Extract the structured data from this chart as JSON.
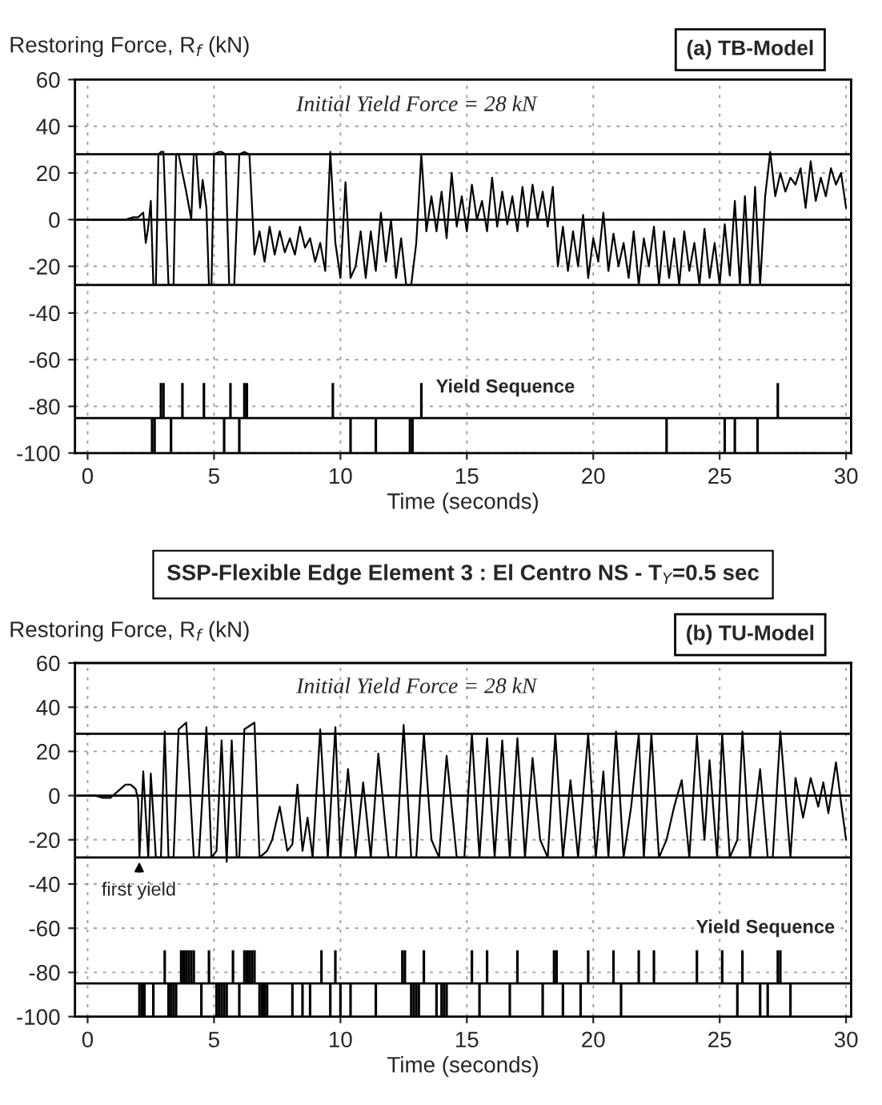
{
  "chart_data": [
    {
      "type": "line",
      "subtitle": "(a) TB-Model",
      "ylabel": "Restoring Force, R$_{f}$ (kN)",
      "xlabel": "Time (seconds)",
      "xlim": [
        -0.5,
        30.2
      ],
      "xticks": [
        0,
        5,
        10,
        15,
        20,
        25,
        30
      ],
      "ylim": [
        -100,
        60
      ],
      "yticks": [
        -100,
        -80,
        -60,
        -40,
        -20,
        0,
        20,
        40,
        60
      ],
      "grid": true,
      "annotations": [
        "Initial Yield Force = 28 kN",
        "Yield Sequence"
      ],
      "ref_lines": [
        {
          "axis": "y",
          "value": 28,
          "color": "#000000"
        },
        {
          "axis": "y",
          "value": -28,
          "color": "#000000"
        },
        {
          "axis": "y",
          "value": 0,
          "color": "#000000"
        },
        {
          "axis": "y",
          "value": -85,
          "color": "#000000"
        }
      ],
      "series": [
        {
          "type": "line",
          "color": "#000000",
          "x": [
            0,
            0.5,
            1.0,
            1.5,
            1.8,
            2.0,
            2.2,
            2.3,
            2.4,
            2.5,
            2.6,
            2.7,
            2.8,
            2.9,
            3.0,
            3.2,
            3.3,
            3.4,
            3.5,
            3.6,
            3.75,
            3.9,
            4.1,
            4.2,
            4.3,
            4.45,
            4.55,
            4.7,
            4.8,
            4.9,
            5.0,
            5.2,
            5.3,
            5.45,
            5.6,
            5.8,
            6.0,
            6.2,
            6.4,
            6.6,
            6.8,
            7.0,
            7.2,
            7.4,
            7.6,
            7.8,
            8.0,
            8.2,
            8.4,
            8.6,
            8.8,
            9.0,
            9.2,
            9.4,
            9.6,
            9.8,
            10.0,
            10.2,
            10.4,
            10.6,
            10.8,
            11.0,
            11.2,
            11.4,
            11.6,
            11.8,
            12.0,
            12.2,
            12.4,
            12.6,
            12.8,
            13.0,
            13.2,
            13.4,
            13.6,
            13.8,
            14.0,
            14.2,
            14.4,
            14.6,
            14.8,
            15.0,
            15.2,
            15.4,
            15.6,
            15.8,
            16.0,
            16.2,
            16.4,
            16.6,
            16.8,
            17.0,
            17.2,
            17.4,
            17.6,
            17.8,
            18.0,
            18.2,
            18.4,
            18.6,
            18.8,
            19.0,
            19.2,
            19.4,
            19.6,
            19.8,
            20.0,
            20.2,
            20.4,
            20.6,
            20.8,
            21.0,
            21.2,
            21.4,
            21.6,
            21.8,
            22.0,
            22.2,
            22.4,
            22.6,
            22.8,
            23.0,
            23.2,
            23.4,
            23.6,
            23.8,
            24.0,
            24.2,
            24.4,
            24.6,
            24.8,
            25.0,
            25.2,
            25.4,
            25.6,
            25.8,
            26.0,
            26.2,
            26.4,
            26.6,
            26.8,
            27.0,
            27.2,
            27.4,
            27.6,
            27.8,
            28.0,
            28.2,
            28.4,
            28.6,
            28.8,
            29.0,
            29.2,
            29.4,
            29.6,
            29.8,
            30.0
          ],
          "values": [
            0,
            0,
            0,
            0,
            1,
            1,
            3,
            -10,
            -3,
            8,
            -28,
            -28,
            28,
            29,
            29,
            -28,
            -28,
            -28,
            28,
            28,
            20,
            12,
            0,
            28,
            28,
            5,
            17,
            5,
            -28,
            -28,
            28,
            29,
            29,
            28,
            -28,
            -28,
            28,
            29,
            28,
            -15,
            -5,
            -18,
            -3,
            -15,
            -5,
            -14,
            -8,
            -15,
            -3,
            -12,
            -8,
            -18,
            -10,
            -22,
            29,
            -10,
            -25,
            16,
            -25,
            -20,
            -5,
            -25,
            -5,
            -22,
            3,
            -18,
            0,
            -25,
            -8,
            -28,
            -28,
            -10,
            28,
            -5,
            10,
            -5,
            12,
            -8,
            20,
            -3,
            10,
            -5,
            15,
            0,
            8,
            -5,
            18,
            -3,
            12,
            -2,
            10,
            -5,
            14,
            -3,
            15,
            0,
            12,
            -3,
            14,
            -20,
            -3,
            -22,
            -5,
            -20,
            2,
            -25,
            -8,
            -18,
            3,
            -22,
            -6,
            -20,
            -10,
            -25,
            -5,
            -28,
            -8,
            -20,
            -3,
            -28,
            -5,
            -25,
            -8,
            -28,
            -5,
            -22,
            -10,
            -28,
            -4,
            -25,
            -10,
            -28,
            -2,
            -24,
            8,
            -28,
            10,
            -28,
            14,
            -28,
            10,
            29,
            10,
            20,
            12,
            18,
            15,
            22,
            5,
            25,
            8,
            18,
            10,
            22,
            15,
            20,
            5
          ]
        },
        {
          "type": "bar",
          "color": "#000000",
          "x": [
            2.55,
            2.65,
            2.9,
            3.0,
            3.3,
            3.75,
            4.6,
            5.4,
            5.65,
            6.0,
            6.2,
            6.3,
            9.7,
            10.4,
            11.4,
            12.75,
            12.85,
            13.2,
            22.9,
            25.2,
            25.6,
            26.5,
            27.3
          ],
          "base": [
            -85,
            -85,
            -85,
            -85,
            -85,
            -85,
            -85,
            -85,
            -85,
            -85,
            -85,
            -85,
            -85,
            -85,
            -85,
            -85,
            -85,
            -85,
            -85,
            -85,
            -85,
            -85,
            -85
          ],
          "values": [
            -15,
            -15,
            15,
            15,
            -15,
            15,
            15,
            -15,
            15,
            -15,
            15,
            15,
            15,
            -15,
            -15,
            -15,
            -15,
            15,
            -15,
            -15,
            -15,
            -15,
            15
          ]
        }
      ]
    },
    {
      "type": "line",
      "title": "SSP-Flexible Edge Element 3 : El Centro NS - T$_{Y}$=0.5 sec",
      "subtitle": "(b) TU-Model",
      "ylabel": "Restoring Force, R$_{f}$ (kN)",
      "xlabel": "Time (seconds)",
      "xlim": [
        -0.5,
        30.2
      ],
      "xticks": [
        0,
        5,
        10,
        15,
        20,
        25,
        30
      ],
      "ylim": [
        -100,
        60
      ],
      "yticks": [
        -100,
        -80,
        -60,
        -40,
        -20,
        0,
        20,
        40,
        60
      ],
      "grid": true,
      "annotations": [
        "Initial Yield Force = 28 kN",
        "Yield Sequence",
        {
          "text": "first yield",
          "x": 2.05,
          "y": -28
        }
      ],
      "ref_lines": [
        {
          "axis": "y",
          "value": 28,
          "color": "#000000"
        },
        {
          "axis": "y",
          "value": -28,
          "color": "#000000"
        },
        {
          "axis": "y",
          "value": 0,
          "color": "#000000"
        },
        {
          "axis": "y",
          "value": -85,
          "color": "#000000"
        }
      ],
      "series": [
        {
          "type": "line",
          "color": "#000000",
          "x": [
            0,
            0.3,
            0.6,
            0.9,
            1.2,
            1.5,
            1.7,
            1.9,
            2.0,
            2.05,
            2.2,
            2.4,
            2.5,
            2.7,
            2.9,
            3.05,
            3.2,
            3.4,
            3.6,
            3.9,
            4.2,
            4.4,
            4.7,
            4.9,
            5.1,
            5.3,
            5.5,
            5.7,
            5.9,
            6.0,
            6.2,
            6.6,
            6.8,
            7.1,
            7.3,
            7.6,
            7.9,
            8.1,
            8.3,
            8.5,
            8.7,
            8.9,
            9.2,
            9.5,
            9.8,
            10.0,
            10.3,
            10.6,
            10.9,
            11.2,
            11.5,
            11.9,
            12.2,
            12.5,
            12.8,
            13.0,
            13.3,
            13.6,
            13.9,
            14.2,
            14.6,
            14.9,
            15.2,
            15.5,
            15.8,
            16.1,
            16.4,
            16.7,
            17.0,
            17.3,
            17.6,
            17.9,
            18.2,
            18.5,
            18.8,
            19.1,
            19.4,
            19.8,
            20.1,
            20.4,
            20.6,
            20.9,
            21.2,
            21.5,
            21.8,
            22.0,
            22.3,
            22.6,
            22.9,
            23.2,
            23.5,
            23.8,
            24.1,
            24.4,
            24.6,
            24.9,
            25.1,
            25.4,
            25.7,
            25.9,
            26.2,
            26.6,
            26.9,
            27.1,
            27.4,
            27.8,
            28.0,
            28.3,
            28.6,
            28.9,
            29.1,
            29.3,
            29.6,
            29.8,
            30.0
          ],
          "values": [
            0,
            0,
            -1,
            -1,
            2,
            5,
            5,
            3,
            -2,
            -28,
            11,
            -28,
            10,
            -28,
            -28,
            29,
            -28,
            -28,
            30,
            33,
            -28,
            -28,
            31,
            -28,
            -25,
            25,
            -30,
            25,
            -28,
            -28,
            30,
            33,
            -28,
            -25,
            -20,
            -5,
            -25,
            -22,
            5,
            -25,
            -10,
            -28,
            30,
            -28,
            31,
            -28,
            12,
            -28,
            6,
            -28,
            19,
            -28,
            -28,
            32,
            -28,
            -28,
            28,
            -20,
            -28,
            18,
            -28,
            -28,
            28,
            -28,
            26,
            -28,
            25,
            -28,
            26,
            -28,
            17,
            -20,
            -28,
            28,
            -28,
            7,
            -28,
            28,
            -28,
            11,
            -28,
            29,
            -28,
            -5,
            28,
            -28,
            28,
            -28,
            -20,
            -5,
            7,
            -28,
            27,
            -20,
            16,
            -28,
            28,
            -28,
            -20,
            29,
            -28,
            12,
            -28,
            -28,
            29,
            -28,
            8,
            -10,
            8,
            -5,
            6,
            -8,
            15,
            -3,
            -20
          ]
        },
        {
          "type": "bar",
          "color": "#000000",
          "x": [
            2.05,
            2.15,
            2.25,
            2.6,
            3.05,
            3.2,
            3.3,
            3.4,
            3.5,
            3.7,
            3.8,
            3.9,
            4.0,
            4.1,
            4.2,
            4.5,
            4.8,
            5.1,
            5.2,
            5.3,
            5.4,
            5.5,
            5.75,
            6.0,
            6.2,
            6.3,
            6.4,
            6.5,
            6.6,
            6.8,
            6.9,
            7.0,
            7.1,
            8.1,
            8.5,
            8.8,
            9.25,
            9.6,
            9.8,
            10.0,
            10.4,
            11.4,
            12.45,
            12.55,
            12.8,
            12.9,
            13.0,
            13.1,
            13.3,
            13.8,
            14.0,
            14.1,
            14.2,
            15.2,
            15.5,
            15.8,
            16.7,
            17.0,
            18.0,
            18.45,
            18.55,
            18.8,
            19.5,
            19.8,
            20.8,
            21.1,
            21.8,
            22.4,
            24.1,
            25.1,
            25.7,
            25.9,
            26.6,
            26.9,
            27.3,
            27.4,
            27.8
          ],
          "base": [
            -85,
            -85,
            -85,
            -85,
            -85,
            -85,
            -85,
            -85,
            -85,
            -85,
            -85,
            -85,
            -85,
            -85,
            -85,
            -85,
            -85,
            -85,
            -85,
            -85,
            -85,
            -85,
            -85,
            -85,
            -85,
            -85,
            -85,
            -85,
            -85,
            -85,
            -85,
            -85,
            -85,
            -85,
            -85,
            -85,
            -85,
            -85,
            -85,
            -85,
            -85,
            -85,
            -85,
            -85,
            -85,
            -85,
            -85,
            -85,
            -85,
            -85,
            -85,
            -85,
            -85,
            -85,
            -85,
            -85,
            -85,
            -85,
            -85,
            -85,
            -85,
            -85,
            -85,
            -85,
            -85,
            -85,
            -85,
            -85,
            -85,
            -85,
            -85,
            -85,
            -85,
            -85,
            -85,
            -85,
            -85
          ],
          "values": [
            -15,
            -15,
            -15,
            -15,
            15,
            -15,
            -15,
            -15,
            -15,
            15,
            15,
            15,
            15,
            15,
            15,
            -15,
            15,
            -15,
            -15,
            -15,
            -15,
            -15,
            15,
            -15,
            15,
            15,
            15,
            15,
            15,
            -15,
            -15,
            -15,
            -15,
            -15,
            -15,
            -15,
            15,
            -15,
            15,
            -15,
            -15,
            -15,
            15,
            15,
            -15,
            -15,
            -15,
            -15,
            15,
            -15,
            -15,
            -15,
            -15,
            15,
            -15,
            15,
            -15,
            15,
            -15,
            15,
            15,
            -15,
            -15,
            15,
            15,
            -15,
            15,
            15,
            15,
            15,
            -15,
            15,
            -15,
            -15,
            15,
            15,
            -15
          ]
        }
      ]
    }
  ]
}
